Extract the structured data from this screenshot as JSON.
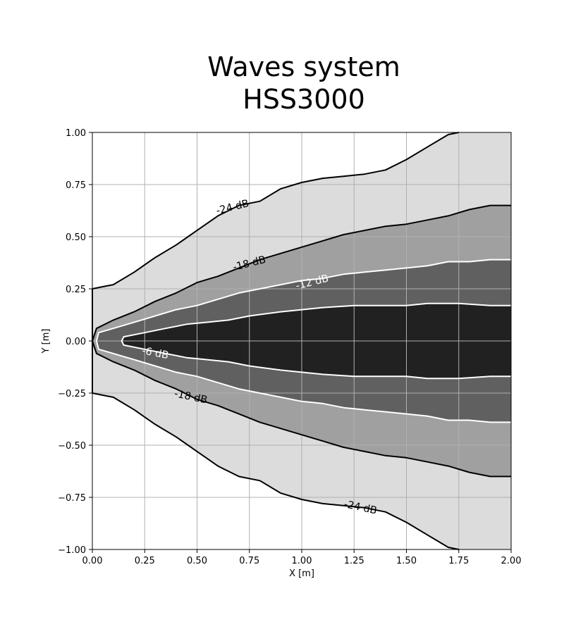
{
  "chart_data": {
    "type": "contour",
    "title": [
      "Waves system",
      "HSS3000"
    ],
    "xlabel": "X [m]",
    "ylabel": "Y [m]",
    "xlim": [
      0.0,
      2.0
    ],
    "ylim": [
      -1.0,
      1.0
    ],
    "grid": true,
    "xticks": [
      0.0,
      0.25,
      0.5,
      0.75,
      1.0,
      1.25,
      1.5,
      1.75,
      2.0
    ],
    "xtick_labels": [
      "0.00",
      "0.25",
      "0.50",
      "0.75",
      "1.00",
      "1.25",
      "1.50",
      "1.75",
      "2.00"
    ],
    "yticks": [
      -1.0,
      -0.75,
      -0.5,
      -0.25,
      0.0,
      0.25,
      0.5,
      0.75,
      1.0
    ],
    "ytick_labels": [
      "−1.00",
      "−0.75",
      "−0.50",
      "−0.25",
      "0.00",
      "0.25",
      "0.50",
      "0.75",
      "1.00"
    ],
    "levels": [
      {
        "label": "-24 dB",
        "fill": "#dcdcdc",
        "line": "#000000",
        "boundary": [
          [
            0.0,
            0.25
          ],
          [
            0.05,
            0.26
          ],
          [
            0.1,
            0.27
          ],
          [
            0.2,
            0.33
          ],
          [
            0.3,
            0.4
          ],
          [
            0.4,
            0.46
          ],
          [
            0.5,
            0.53
          ],
          [
            0.6,
            0.6
          ],
          [
            0.7,
            0.65
          ],
          [
            0.8,
            0.67
          ],
          [
            0.9,
            0.73
          ],
          [
            1.0,
            0.76
          ],
          [
            1.1,
            0.78
          ],
          [
            1.2,
            0.79
          ],
          [
            1.3,
            0.8
          ],
          [
            1.4,
            0.82
          ],
          [
            1.5,
            0.87
          ],
          [
            1.6,
            0.93
          ],
          [
            1.7,
            0.99
          ],
          [
            1.75,
            1.0
          ]
        ],
        "label_at": [
          0.67,
          0.64
        ]
      },
      {
        "label": "-18 dB",
        "fill": "#a0a0a0",
        "line": "#000000",
        "boundary": [
          [
            0.0,
            0.0
          ],
          [
            0.02,
            0.06
          ],
          [
            0.1,
            0.1
          ],
          [
            0.2,
            0.14
          ],
          [
            0.3,
            0.19
          ],
          [
            0.4,
            0.23
          ],
          [
            0.5,
            0.28
          ],
          [
            0.6,
            0.31
          ],
          [
            0.7,
            0.35
          ],
          [
            0.8,
            0.39
          ],
          [
            0.9,
            0.42
          ],
          [
            1.0,
            0.45
          ],
          [
            1.1,
            0.48
          ],
          [
            1.2,
            0.51
          ],
          [
            1.3,
            0.53
          ],
          [
            1.4,
            0.55
          ],
          [
            1.5,
            0.56
          ],
          [
            1.6,
            0.58
          ],
          [
            1.7,
            0.6
          ],
          [
            1.8,
            0.63
          ],
          [
            1.9,
            0.65
          ],
          [
            2.0,
            0.65
          ]
        ],
        "label_at": [
          0.75,
          0.37
        ]
      },
      {
        "label": "-12 dB",
        "fill": "#606060",
        "line": "#ffffff",
        "boundary": [
          [
            0.02,
            0.0
          ],
          [
            0.03,
            0.04
          ],
          [
            0.1,
            0.06
          ],
          [
            0.2,
            0.09
          ],
          [
            0.3,
            0.12
          ],
          [
            0.4,
            0.15
          ],
          [
            0.5,
            0.17
          ],
          [
            0.6,
            0.2
          ],
          [
            0.7,
            0.23
          ],
          [
            0.8,
            0.25
          ],
          [
            0.9,
            0.27
          ],
          [
            1.0,
            0.29
          ],
          [
            1.1,
            0.3
          ],
          [
            1.2,
            0.32
          ],
          [
            1.3,
            0.33
          ],
          [
            1.4,
            0.34
          ],
          [
            1.5,
            0.35
          ],
          [
            1.6,
            0.36
          ],
          [
            1.7,
            0.38
          ],
          [
            1.8,
            0.38
          ],
          [
            1.9,
            0.39
          ],
          [
            2.0,
            0.39
          ]
        ],
        "label_at": [
          1.05,
          0.28
        ]
      },
      {
        "label": "-6 dB",
        "fill": "#212121",
        "line": "#ffffff",
        "boundary": [
          [
            0.14,
            0.0
          ],
          [
            0.15,
            0.02
          ],
          [
            0.25,
            0.04
          ],
          [
            0.35,
            0.06
          ],
          [
            0.45,
            0.08
          ],
          [
            0.55,
            0.09
          ],
          [
            0.65,
            0.1
          ],
          [
            0.75,
            0.12
          ],
          [
            0.9,
            0.14
          ],
          [
            1.0,
            0.15
          ],
          [
            1.1,
            0.16
          ],
          [
            1.25,
            0.17
          ],
          [
            1.4,
            0.17
          ],
          [
            1.5,
            0.17
          ],
          [
            1.6,
            0.18
          ],
          [
            1.75,
            0.18
          ],
          [
            1.9,
            0.17
          ],
          [
            2.0,
            0.17
          ]
        ],
        "label_at": [
          0.3,
          -0.06
        ]
      }
    ],
    "mirror_label_positions": {
      "-18 dB": [
        0.47,
        -0.27
      ],
      "-24 dB": [
        1.28,
        -0.8
      ]
    }
  }
}
